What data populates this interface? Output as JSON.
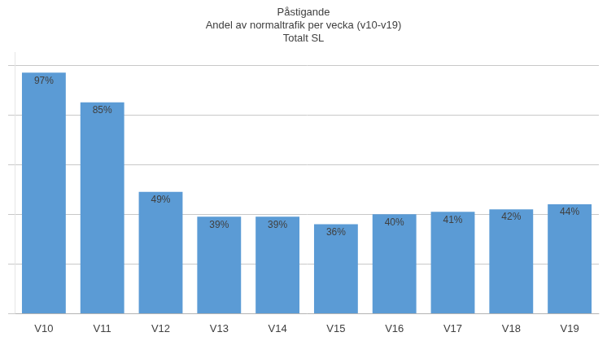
{
  "chart_data": {
    "type": "bar",
    "title": "Påstigande\nAndel av normaltrafik per vecka (v10-v19)\nTotalt SL",
    "categories": [
      "V10",
      "V11",
      "V12",
      "V13",
      "V14",
      "V15",
      "V16",
      "V17",
      "V18",
      "V19"
    ],
    "values": [
      97,
      85,
      49,
      39,
      39,
      36,
      40,
      41,
      42,
      44
    ],
    "value_labels": [
      "97%",
      "85%",
      "49%",
      "39%",
      "39%",
      "36%",
      "40%",
      "41%",
      "42%",
      "44%"
    ],
    "data_labels": true,
    "color": "#5b9bd5",
    "ylim": [
      0,
      105
    ],
    "yticks": [
      0,
      20,
      40,
      60,
      80,
      100
    ],
    "grid": true,
    "tick_labels": "x"
  }
}
